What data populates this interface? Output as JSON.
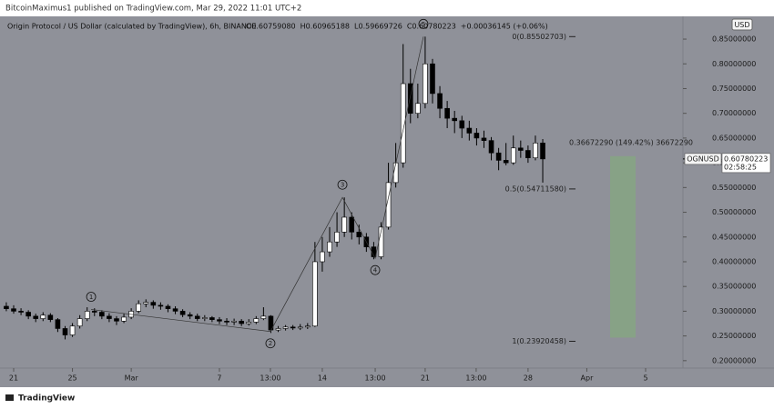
{
  "chart_data": {
    "type": "candlestick",
    "header": "BitcoinMaximus1 published on TradingView.com, Mar 29, 2022 11:01 UTC+2",
    "title": "Origin Protocol / US Dollar (calculated by TradingView), 6h, BINANCE",
    "ohlc_labels": [
      "O0.60759080",
      "H0.60965188",
      "L0.59669726",
      "C0.60780223",
      "+0.00036145 (+0.06%)"
    ],
    "currency": "USD",
    "brand": "TradingView",
    "up_color": "#ffffff",
    "down_color": "#000000",
    "background": "#8f9199",
    "x": [
      -0.5,
      0,
      0.5,
      1,
      1.5,
      2,
      2.5,
      3,
      3.5,
      4,
      4.5,
      5,
      5.5,
      6,
      6.5,
      7,
      7.5,
      8,
      8.5,
      9,
      9.5,
      10,
      10.5,
      11,
      11.5,
      12,
      12.5,
      13,
      13.5,
      14,
      14.5,
      15,
      15.5,
      16,
      16.5,
      17,
      17.5,
      18,
      18.5,
      19,
      19.5,
      20,
      20.5,
      21,
      21.5,
      22,
      22.5,
      23,
      23.5,
      24,
      24.5,
      25,
      25.5,
      26,
      26.5,
      27,
      27.5,
      28,
      28.5,
      29,
      29.5,
      30,
      30.5,
      31,
      31.5,
      32,
      32.5,
      33,
      33.5,
      34,
      34.5,
      35,
      35.5,
      36
    ],
    "open": [
      0.31,
      0.305,
      0.3,
      0.298,
      0.29,
      0.285,
      0.292,
      0.283,
      0.265,
      0.252,
      0.27,
      0.285,
      0.3,
      0.298,
      0.29,
      0.285,
      0.28,
      0.288,
      0.3,
      0.315,
      0.318,
      0.312,
      0.31,
      0.305,
      0.3,
      0.293,
      0.29,
      0.285,
      0.287,
      0.283,
      0.28,
      0.278,
      0.28,
      0.275,
      0.278,
      0.285,
      0.29,
      0.262,
      0.265,
      0.268,
      0.266,
      0.268,
      0.27,
      0.4,
      0.42,
      0.44,
      0.46,
      0.49,
      0.46,
      0.45,
      0.43,
      0.41,
      0.47,
      0.56,
      0.6,
      0.76,
      0.7,
      0.72,
      0.8,
      0.74,
      0.71,
      0.69,
      0.685,
      0.67,
      0.66,
      0.65,
      0.645,
      0.62,
      0.605,
      0.6,
      0.63,
      0.625,
      0.61,
      0.64
    ],
    "high": [
      0.318,
      0.312,
      0.306,
      0.302,
      0.295,
      0.298,
      0.296,
      0.286,
      0.27,
      0.276,
      0.292,
      0.308,
      0.306,
      0.302,
      0.296,
      0.29,
      0.295,
      0.306,
      0.322,
      0.324,
      0.322,
      0.318,
      0.314,
      0.31,
      0.304,
      0.298,
      0.295,
      0.292,
      0.29,
      0.288,
      0.286,
      0.285,
      0.284,
      0.284,
      0.29,
      0.308,
      0.292,
      0.27,
      0.272,
      0.272,
      0.274,
      0.276,
      0.44,
      0.45,
      0.47,
      0.5,
      0.53,
      0.5,
      0.475,
      0.458,
      0.44,
      0.48,
      0.6,
      0.64,
      0.84,
      0.79,
      0.76,
      0.855,
      0.81,
      0.755,
      0.725,
      0.705,
      0.695,
      0.685,
      0.67,
      0.665,
      0.652,
      0.63,
      0.64,
      0.655,
      0.645,
      0.635,
      0.655,
      0.648
    ],
    "low": [
      0.3,
      0.295,
      0.292,
      0.284,
      0.278,
      0.28,
      0.278,
      0.258,
      0.243,
      0.248,
      0.265,
      0.28,
      0.29,
      0.284,
      0.278,
      0.272,
      0.276,
      0.284,
      0.296,
      0.308,
      0.305,
      0.303,
      0.298,
      0.294,
      0.288,
      0.284,
      0.28,
      0.28,
      0.278,
      0.274,
      0.272,
      0.272,
      0.27,
      0.271,
      0.274,
      0.282,
      0.256,
      0.258,
      0.261,
      0.262,
      0.262,
      0.264,
      0.268,
      0.38,
      0.41,
      0.43,
      0.45,
      0.445,
      0.435,
      0.42,
      0.405,
      0.405,
      0.465,
      0.55,
      0.59,
      0.68,
      0.69,
      0.71,
      0.72,
      0.69,
      0.67,
      0.66,
      0.65,
      0.645,
      0.635,
      0.63,
      0.605,
      0.585,
      0.595,
      0.596,
      0.61,
      0.6,
      0.605,
      0.56
    ],
    "close": [
      0.305,
      0.3,
      0.298,
      0.29,
      0.285,
      0.292,
      0.283,
      0.265,
      0.252,
      0.27,
      0.285,
      0.3,
      0.298,
      0.29,
      0.285,
      0.28,
      0.288,
      0.3,
      0.315,
      0.318,
      0.312,
      0.31,
      0.305,
      0.3,
      0.293,
      0.29,
      0.285,
      0.287,
      0.283,
      0.28,
      0.278,
      0.28,
      0.275,
      0.278,
      0.285,
      0.29,
      0.262,
      0.265,
      0.268,
      0.266,
      0.268,
      0.27,
      0.4,
      0.42,
      0.44,
      0.46,
      0.49,
      0.46,
      0.45,
      0.43,
      0.41,
      0.47,
      0.56,
      0.6,
      0.76,
      0.7,
      0.72,
      0.8,
      0.74,
      0.71,
      0.69,
      0.685,
      0.67,
      0.66,
      0.65,
      0.645,
      0.62,
      0.605,
      0.6,
      0.63,
      0.625,
      0.61,
      0.64,
      0.6078
    ],
    "xlim": [
      -0.93,
      45.54
    ],
    "xticks": [
      {
        "value": 0,
        "label": "21"
      },
      {
        "value": 4,
        "label": "25"
      },
      {
        "value": 8,
        "label": "Mar"
      },
      {
        "value": 14,
        "label": "7"
      },
      {
        "value": 17.47,
        "label": "13:00"
      },
      {
        "value": 21,
        "label": "14"
      },
      {
        "value": 24.6,
        "label": "13:00"
      },
      {
        "value": 28,
        "label": "21"
      },
      {
        "value": 31.47,
        "label": "13:00"
      },
      {
        "value": 35,
        "label": "28"
      },
      {
        "value": 39,
        "label": "Apr"
      },
      {
        "value": 43,
        "label": "5"
      }
    ],
    "ylim": [
      0.185,
      0.896
    ],
    "yticks": [
      {
        "value": 0.2,
        "label": "0.20000000"
      },
      {
        "value": 0.25,
        "label": "0.25000000"
      },
      {
        "value": 0.3,
        "label": "0.30000000"
      },
      {
        "value": 0.35,
        "label": "0.35000000"
      },
      {
        "value": 0.4,
        "label": "0.40000000"
      },
      {
        "value": 0.45,
        "label": "0.45000000"
      },
      {
        "value": 0.5,
        "label": "0.50000000"
      },
      {
        "value": 0.55,
        "label": "0.55000000"
      },
      {
        "value": 0.6,
        "label": "0.60000000"
      },
      {
        "value": 0.65,
        "label": "0.65000000"
      },
      {
        "value": 0.7,
        "label": "0.70000000"
      },
      {
        "value": 0.75,
        "label": "0.75000000"
      },
      {
        "value": 0.8,
        "label": "0.80000000"
      },
      {
        "value": 0.85,
        "label": "0.85000000"
      }
    ],
    "fib_levels": [
      {
        "value": 0.85502703,
        "label": "0(0.85502703)"
      },
      {
        "value": 0.5471158,
        "label": "0.5(0.54711580)"
      },
      {
        "value": 0.23920458,
        "label": "1(0.23920458)"
      }
    ],
    "measure": {
      "base": 0.2467,
      "value": 0.3667229,
      "label": "0.36672290 (149.42%) 36672290",
      "color": "#86a583"
    },
    "waves": [
      {
        "label": "1",
        "x": 5.27,
        "price": 0.3035
      },
      {
        "label": "2",
        "x": 17.47,
        "price": 0.259
      },
      {
        "label": "3",
        "x": 22.37,
        "price": 0.53
      },
      {
        "label": "4",
        "x": 24.6,
        "price": 0.407
      },
      {
        "label": "5",
        "x": 27.88,
        "price": 0.855
      }
    ],
    "last": {
      "name": "OGNUSD",
      "value": 0.60780223,
      "countdown": "02:58:25"
    }
  }
}
